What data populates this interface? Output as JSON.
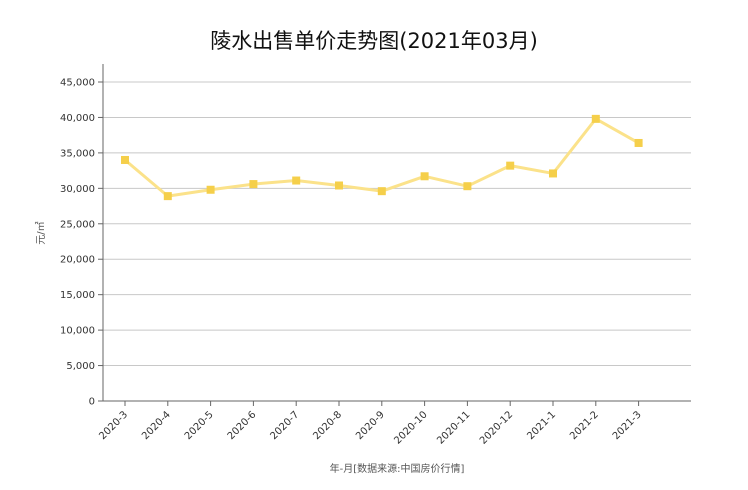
{
  "chart_data": {
    "type": "line",
    "title": "陵水出售单价走势图(2021年03月)",
    "xlabel": "年-月[数据来源:中国房价行情]",
    "ylabel": "元/㎡",
    "categories": [
      "2020-3",
      "2020-4",
      "2020-5",
      "2020-6",
      "2020-7",
      "2020-8",
      "2020-9",
      "2020-10",
      "2020-11",
      "2020-12",
      "2021-1",
      "2021-2",
      "2021-3"
    ],
    "series": [
      {
        "values": [
          34000,
          28900,
          29800,
          30600,
          31100,
          30400,
          29600,
          31700,
          30300,
          33200,
          32100,
          39800,
          36400
        ]
      }
    ],
    "ylim": [
      0,
      45000
    ],
    "yticks": [
      0,
      5000,
      10000,
      15000,
      20000,
      25000,
      30000,
      35000,
      40000,
      45000
    ],
    "ytick_labels": [
      "0",
      "5,000",
      "10,000",
      "15,000",
      "20,000",
      "25,000",
      "30,000",
      "35,000",
      "40,000",
      "45,000"
    ],
    "grid": true,
    "line_color": "#fbe28a",
    "marker_color": "#f5cf4a"
  }
}
